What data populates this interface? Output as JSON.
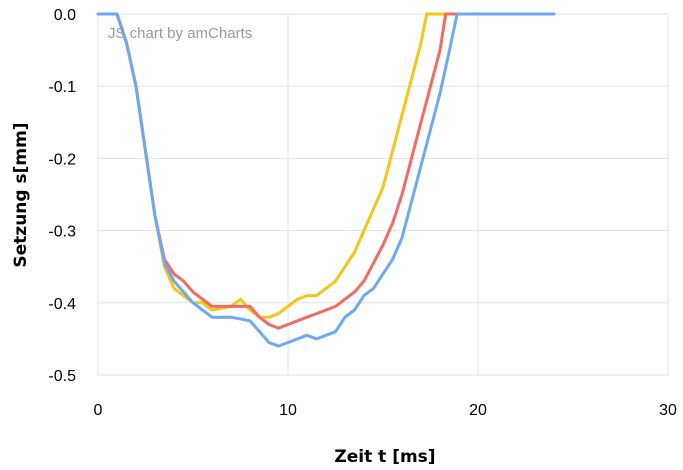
{
  "chart_data": {
    "type": "line",
    "credit": "JS chart by amCharts",
    "xlabel": "Zeit t [ms]",
    "ylabel": "Setzung s[mm]",
    "xlim": [
      0,
      30
    ],
    "ylim": [
      -0.5,
      0.0
    ],
    "x_ticks": [
      0,
      10,
      20,
      30
    ],
    "x_tick_labels": [
      "0",
      "10",
      "20",
      "30"
    ],
    "y_ticks": [
      0.0,
      -0.1,
      -0.2,
      -0.3,
      -0.4,
      -0.5
    ],
    "y_tick_labels": [
      "0.0",
      "-0.1",
      "-0.2",
      "-0.3",
      "-0.4",
      "-0.5"
    ],
    "grid": true,
    "legend": "none",
    "series": [
      {
        "color": "#f5c518",
        "x": [
          0,
          1.0,
          1.5,
          2.0,
          2.5,
          3.0,
          3.5,
          4.0,
          4.5,
          5.0,
          5.5,
          6.0,
          7.0,
          7.5,
          8.0,
          8.5,
          9.0,
          9.5,
          10.0,
          10.5,
          11.0,
          11.5,
          12.0,
          12.5,
          13.0,
          13.5,
          14.0,
          14.5,
          15.0,
          15.5,
          16.0,
          16.5,
          17.0,
          17.3,
          17.6,
          24
        ],
        "y": [
          0.0,
          0.0,
          -0.04,
          -0.1,
          -0.19,
          -0.28,
          -0.35,
          -0.38,
          -0.39,
          -0.4,
          -0.4,
          -0.41,
          -0.405,
          -0.395,
          -0.41,
          -0.42,
          -0.42,
          -0.415,
          -0.405,
          -0.395,
          -0.39,
          -0.39,
          -0.38,
          -0.37,
          -0.35,
          -0.33,
          -0.3,
          -0.27,
          -0.24,
          -0.19,
          -0.14,
          -0.09,
          -0.04,
          0.0,
          0.0,
          0.0
        ]
      },
      {
        "color": "#f26b63",
        "x": [
          0,
          1.0,
          1.5,
          2.0,
          2.5,
          3.0,
          3.5,
          4.0,
          4.5,
          5.0,
          5.5,
          6.0,
          7.0,
          8.0,
          8.5,
          9.0,
          9.5,
          10.0,
          10.5,
          11.0,
          11.5,
          12.0,
          12.5,
          13.0,
          13.5,
          14.0,
          14.5,
          15.0,
          15.5,
          16.0,
          16.5,
          17.0,
          17.5,
          18.0,
          18.3,
          24
        ],
        "y": [
          0.0,
          0.0,
          -0.04,
          -0.1,
          -0.19,
          -0.28,
          -0.34,
          -0.36,
          -0.37,
          -0.385,
          -0.395,
          -0.405,
          -0.405,
          -0.405,
          -0.42,
          -0.43,
          -0.435,
          -0.43,
          -0.425,
          -0.42,
          -0.415,
          -0.41,
          -0.405,
          -0.395,
          -0.385,
          -0.37,
          -0.345,
          -0.32,
          -0.29,
          -0.25,
          -0.2,
          -0.15,
          -0.1,
          -0.05,
          0.0,
          0.0
        ]
      },
      {
        "color": "#6ea8f2",
        "x": [
          0,
          1.0,
          1.5,
          2.0,
          2.5,
          3.0,
          3.5,
          4.0,
          4.5,
          5.0,
          5.5,
          6.0,
          7.0,
          8.0,
          8.5,
          9.0,
          9.5,
          10.0,
          10.5,
          11.0,
          11.5,
          12.0,
          12.5,
          13.0,
          13.5,
          14.0,
          14.5,
          15.0,
          15.5,
          16.0,
          16.5,
          17.0,
          17.5,
          18.0,
          18.5,
          18.9,
          24
        ],
        "y": [
          0.0,
          0.0,
          -0.04,
          -0.1,
          -0.19,
          -0.28,
          -0.345,
          -0.37,
          -0.385,
          -0.4,
          -0.41,
          -0.42,
          -0.42,
          -0.425,
          -0.44,
          -0.455,
          -0.46,
          -0.455,
          -0.45,
          -0.445,
          -0.45,
          -0.445,
          -0.44,
          -0.42,
          -0.41,
          -0.39,
          -0.38,
          -0.36,
          -0.34,
          -0.31,
          -0.26,
          -0.21,
          -0.16,
          -0.11,
          -0.05,
          0.0,
          0.0
        ]
      }
    ]
  }
}
